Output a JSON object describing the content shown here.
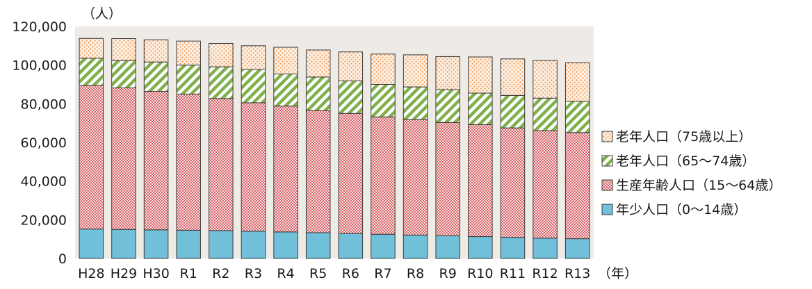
{
  "chart_data": {
    "type": "bar",
    "stacked": true,
    "title": "",
    "ylabel": "（人）",
    "xlabel": "（年）",
    "ylim": [
      0,
      120000
    ],
    "yticks": [
      0,
      20000,
      40000,
      60000,
      80000,
      100000,
      120000
    ],
    "ytick_labels": [
      "0",
      "20,000",
      "40,000",
      "60,000",
      "80,000",
      "100,000",
      "120,000"
    ],
    "grid": false,
    "legend_position": "right",
    "categories": [
      "H28",
      "H29",
      "H30",
      "R1",
      "R2",
      "R3",
      "R4",
      "R5",
      "R6",
      "R7",
      "R8",
      "R9",
      "R10",
      "R11",
      "R12",
      "R13"
    ],
    "series": [
      {
        "name": "年少人口（0～14歳）",
        "color": "#6fc0d8",
        "values": [
          15200,
          15000,
          14800,
          14600,
          14400,
          14100,
          13700,
          13300,
          12900,
          12500,
          12100,
          11700,
          11300,
          10900,
          10500,
          10200
        ]
      },
      {
        "name": "生産年齢人口（15～64歳）",
        "color": "#e38a8a",
        "values": [
          74300,
          73200,
          71600,
          70400,
          68300,
          66400,
          65100,
          63200,
          62100,
          60700,
          59800,
          58600,
          57900,
          56600,
          55600,
          54900
        ]
      },
      {
        "name": "老年人口（65～74歳）",
        "color": "#7fb04a",
        "values": [
          14000,
          14100,
          15200,
          15000,
          16400,
          17200,
          16600,
          17300,
          16800,
          16800,
          16800,
          17000,
          16300,
          16800,
          16800,
          16100
        ]
      },
      {
        "name": "老年人口（75歳以上）",
        "color": "#f0a060",
        "values": [
          10300,
          11400,
          11500,
          12400,
          12100,
          12300,
          13800,
          14000,
          15000,
          15700,
          16600,
          17100,
          18700,
          18900,
          19500,
          20000
        ]
      }
    ]
  }
}
